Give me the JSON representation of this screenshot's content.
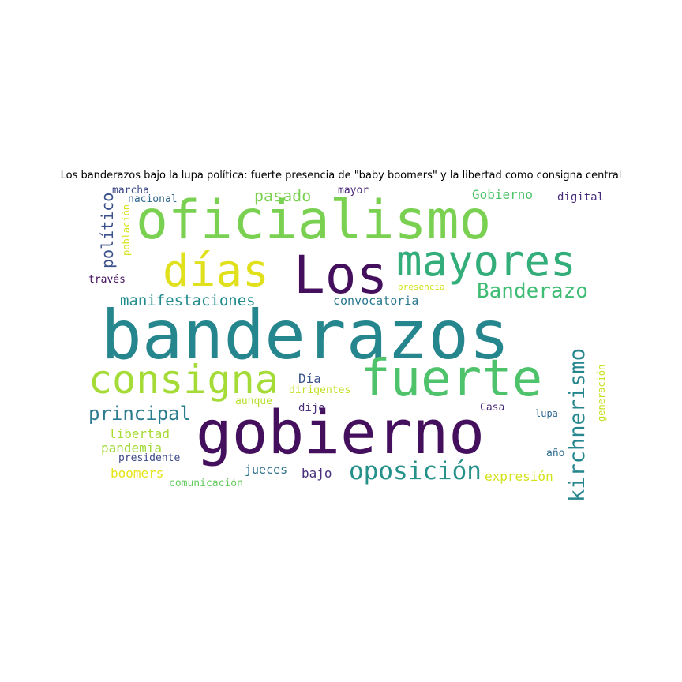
{
  "title": "Los banderazos bajo la lupa política: fuerte presencia de \"baby boomers\" y la libertad como consigna central",
  "words": [
    {
      "text": "banderazos",
      "color": "#26868e"
    },
    {
      "text": "gobierno",
      "color": "#440f5c"
    },
    {
      "text": "oficialismo",
      "color": "#7ad151"
    },
    {
      "text": "fuerte",
      "color": "#4ec36b"
    },
    {
      "text": "Los",
      "color": "#440f5c"
    },
    {
      "text": "mayores",
      "color": "#33ae7a"
    },
    {
      "text": "días",
      "color": "#e0e01c"
    },
    {
      "text": "consigna",
      "color": "#a5db36"
    },
    {
      "text": "oposición",
      "color": "#26908a"
    },
    {
      "text": "kirchnerismo",
      "color": "#26868e"
    },
    {
      "text": "Banderazo",
      "color": "#3fbc73"
    },
    {
      "text": "principal",
      "color": "#2a7b8e"
    },
    {
      "text": "manifestaciones",
      "color": "#228c8d"
    },
    {
      "text": "político",
      "color": "#3b518b"
    },
    {
      "text": "pasado",
      "color": "#7ad151"
    },
    {
      "text": "convocatoria",
      "color": "#2a788e"
    },
    {
      "text": "Gobierno",
      "color": "#4ec36b"
    },
    {
      "text": "mayor",
      "color": "#482878"
    },
    {
      "text": "digital",
      "color": "#472c7a"
    },
    {
      "text": "marcha",
      "color": "#3e4a89"
    },
    {
      "text": "nacional",
      "color": "#31688e"
    },
    {
      "text": "población",
      "color": "#d8e219"
    },
    {
      "text": "través",
      "color": "#440f5c"
    },
    {
      "text": "presencia",
      "color": "#d0e11c"
    },
    {
      "text": "Día",
      "color": "#3b528b"
    },
    {
      "text": "dirigentes",
      "color": "#c2df23"
    },
    {
      "text": "aunque",
      "color": "#b5de2b"
    },
    {
      "text": "dijo",
      "color": "#472d7b"
    },
    {
      "text": "Casa",
      "color": "#482878"
    },
    {
      "text": "lupa",
      "color": "#31688e"
    },
    {
      "text": "generación",
      "color": "#c8e020"
    },
    {
      "text": "libertad",
      "color": "#a8db34"
    },
    {
      "text": "pandemia",
      "color": "#a0da39"
    },
    {
      "text": "presidente",
      "color": "#3e4989"
    },
    {
      "text": "boomers",
      "color": "#e5e419"
    },
    {
      "text": "comunicación",
      "color": "#65cb5e"
    },
    {
      "text": "jueces",
      "color": "#2d708e"
    },
    {
      "text": "bajo",
      "color": "#472d7b"
    },
    {
      "text": "año",
      "color": "#2e6e8e"
    },
    {
      "text": "expresión",
      "color": "#d2e21b"
    }
  ]
}
